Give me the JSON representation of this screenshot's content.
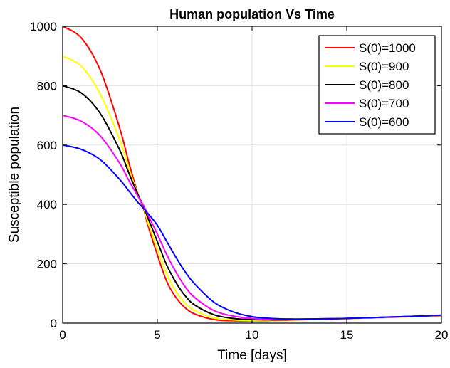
{
  "chart_data": {
    "type": "line",
    "title": "Human population Vs Time",
    "xlabel": "Time [days]",
    "ylabel": "Susceptible population",
    "xlim": [
      0,
      20
    ],
    "ylim": [
      0,
      1000
    ],
    "xticks": [
      0,
      5,
      10,
      15,
      20
    ],
    "yticks": [
      0,
      200,
      400,
      600,
      800,
      1000
    ],
    "grid": true,
    "legend_position": "top-right",
    "x": [
      0,
      1,
      2,
      3,
      3.5,
      4,
      4.3,
      4.5,
      5,
      5.5,
      6,
      6.5,
      7,
      8,
      9,
      10,
      11,
      12,
      13,
      14,
      15,
      16,
      17,
      18,
      19,
      20
    ],
    "series": [
      {
        "name": "S(0)=1000",
        "color": "#ff0000",
        "values": [
          1000,
          960,
          850,
          660,
          540,
          430,
          380,
          330,
          230,
          140,
          85,
          50,
          30,
          12,
          8,
          8,
          9,
          10,
          12,
          13,
          15,
          17,
          19,
          21,
          23,
          25
        ]
      },
      {
        "name": "S(0)=900",
        "color": "#ffff00",
        "values": [
          900,
          865,
          770,
          620,
          520,
          430,
          385,
          340,
          250,
          165,
          105,
          65,
          42,
          18,
          11,
          9,
          10,
          11,
          12,
          14,
          15,
          17,
          19,
          21,
          23,
          25
        ]
      },
      {
        "name": "S(0)=800",
        "color": "#000000",
        "values": [
          800,
          775,
          705,
          585,
          505,
          430,
          390,
          355,
          275,
          195,
          135,
          90,
          60,
          28,
          16,
          12,
          11,
          12,
          13,
          14,
          16,
          18,
          20,
          22,
          24,
          26
        ]
      },
      {
        "name": "S(0)=700",
        "color": "#ff00ff",
        "values": [
          700,
          680,
          630,
          540,
          480,
          425,
          393,
          365,
          300,
          230,
          170,
          120,
          85,
          42,
          24,
          16,
          13,
          13,
          14,
          15,
          16,
          18,
          20,
          22,
          24,
          26
        ]
      },
      {
        "name": "S(0)=600",
        "color": "#0000ff",
        "values": [
          600,
          585,
          550,
          485,
          445,
          405,
          385,
          370,
          330,
          275,
          220,
          170,
          130,
          70,
          38,
          22,
          16,
          14,
          14,
          15,
          16,
          18,
          20,
          22,
          24,
          27
        ]
      }
    ]
  }
}
